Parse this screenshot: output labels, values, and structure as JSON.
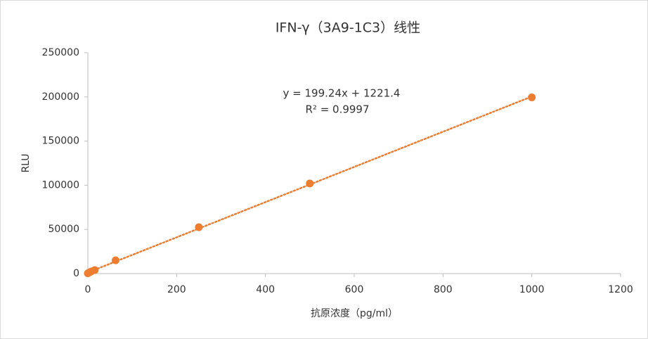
{
  "chart_data": {
    "type": "scatter",
    "title": "IFN-γ（3A9-1C3）线性",
    "x_label": "抗原浓度（pg/ml）",
    "y_label": "RLU",
    "x": [
      0,
      3.9,
      7.8,
      15.6,
      62.5,
      250,
      500,
      1000
    ],
    "series": [
      {
        "name": "RLU",
        "color": "#ED7D31",
        "values": [
          300,
          1500,
          2500,
          4000,
          15000,
          52500,
          102000,
          199500
        ]
      }
    ],
    "trendline": {
      "slope": 199.24,
      "intercept": 1221.4,
      "color": "#ED7D31",
      "equation": "y = 199.24x + 1221.4",
      "r_squared": "R² = 0.9997"
    },
    "xlim": [
      0,
      1200
    ],
    "xticks": [
      0,
      200,
      400,
      600,
      800,
      1000,
      1200
    ],
    "ylim": [
      0,
      250000
    ],
    "yticks": [
      0,
      50000,
      100000,
      150000,
      200000,
      250000
    ],
    "grid": false
  }
}
